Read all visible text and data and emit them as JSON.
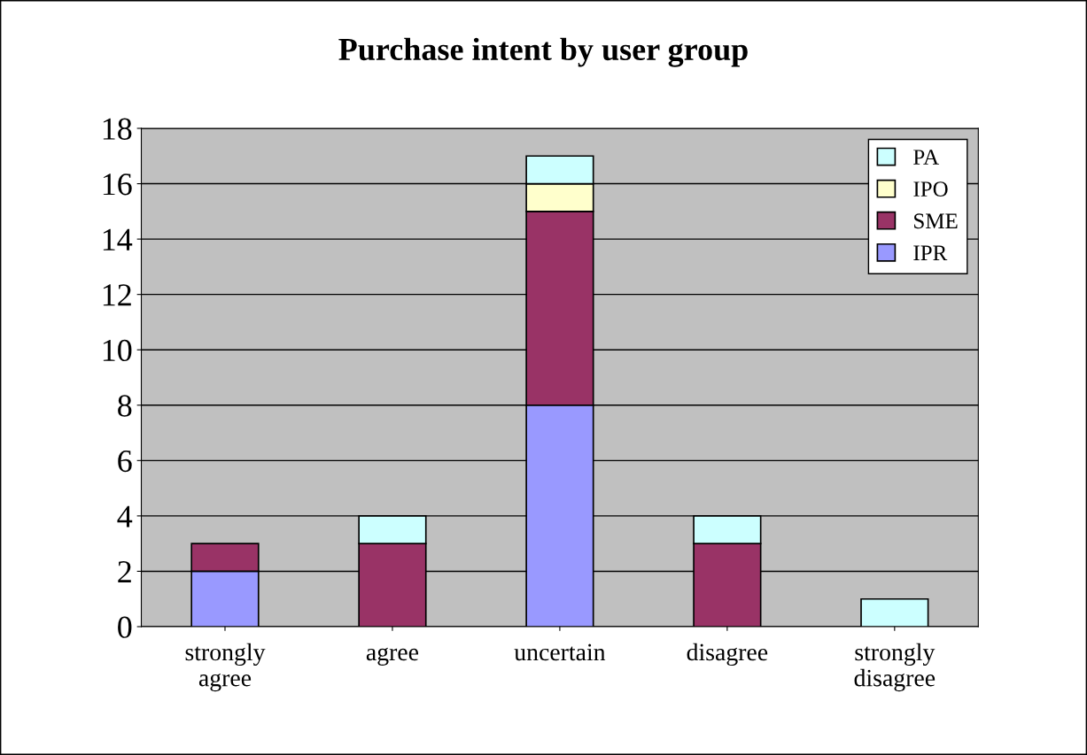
{
  "chart_data": {
    "type": "bar",
    "title": "Purchase intent by user group",
    "categories": [
      "strongly\nagree",
      "agree",
      "uncertain",
      "disagree",
      "strongly\ndisagree"
    ],
    "stacked": true,
    "series": [
      {
        "name": "IPR",
        "color": "#9999ff",
        "values": [
          2,
          null,
          8,
          null,
          null
        ]
      },
      {
        "name": "SME",
        "color": "#993366",
        "values": [
          1,
          3,
          7,
          3,
          null
        ]
      },
      {
        "name": "IPO",
        "color": "#ffffcc",
        "values": [
          null,
          null,
          1,
          null,
          null
        ]
      },
      {
        "name": "PA",
        "color": "#ccffff",
        "values": [
          null,
          1,
          1,
          1,
          1
        ]
      }
    ],
    "ylim": [
      0,
      18
    ],
    "yticks": [
      0,
      2,
      4,
      6,
      8,
      10,
      12,
      14,
      16,
      18
    ],
    "grid": "y",
    "legend": "top right"
  }
}
